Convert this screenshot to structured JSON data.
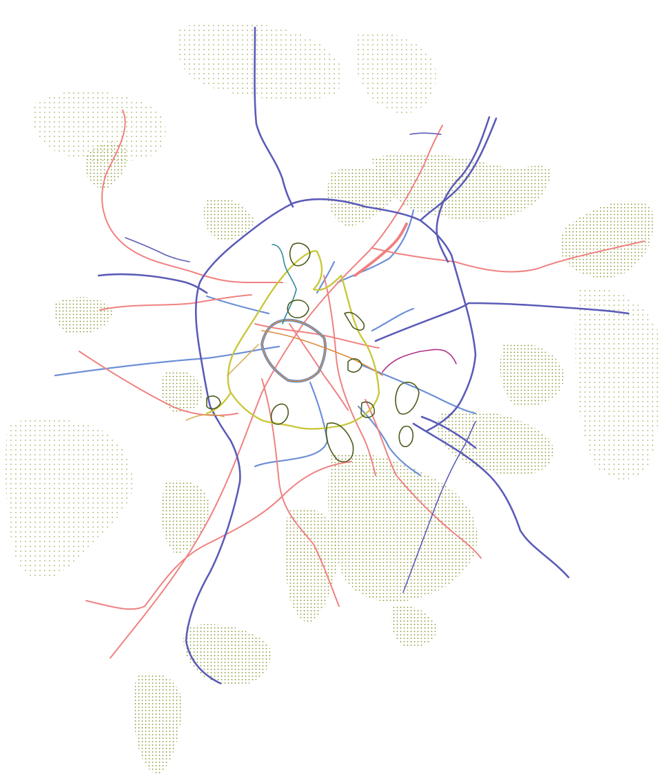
{
  "map": {
    "background": "#ffffff",
    "colors": {
      "green_area": "#7a8a1a",
      "green_area_dark": "#5a6a14",
      "motorway": "#5b5bb8",
      "primary_road": "#f08080",
      "secondary_road": "#6b8fd8",
      "ring_road": "#c9c73a",
      "inner_ring": "#d98a3a",
      "inner_ring_outline": "#5b8fd8",
      "teal_road": "#2a8a9a",
      "purple_road": "#b0308a",
      "tertiary_road": "#d6a84a",
      "park_outline": "#4a5a1a"
    },
    "layers": [
      "green-areas",
      "secondary-roads",
      "primary-roads",
      "motorways",
      "ring-roads",
      "park-outlines"
    ]
  }
}
